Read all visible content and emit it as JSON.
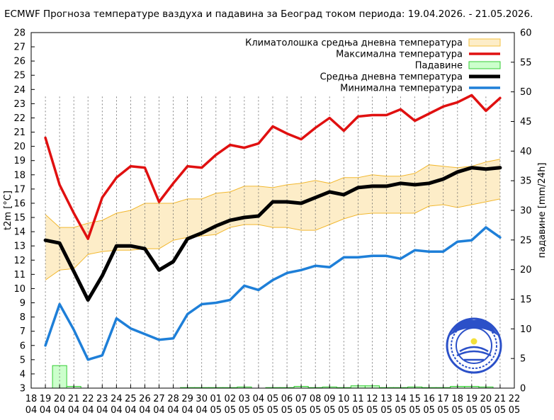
{
  "chart_data": {
    "type": "line",
    "title": "ECMWF Прогноза температуре ваздуха и падавина за Београд током периода: 19.04.2026. - 21.05.2026.",
    "ylabel_left": "t2m [°C]",
    "ylabel_right": "падавине [mm/24h]",
    "ylim_left": [
      3,
      28
    ],
    "ylim_right": [
      0,
      60
    ],
    "y_ticks_left": [
      "3",
      "4",
      "5",
      "6",
      "7",
      "8",
      "9",
      "10",
      "11",
      "12",
      "13",
      "14",
      "15",
      "16",
      "17",
      "18",
      "19",
      "20",
      "21",
      "22",
      "23",
      "24",
      "25",
      "26",
      "27",
      "28"
    ],
    "y_ticks_right": [
      "0",
      "5",
      "10",
      "15",
      "20",
      "25",
      "30",
      "35",
      "40",
      "45",
      "50",
      "55",
      "60"
    ],
    "x_ticks": [
      {
        "day": "18",
        "month": "04"
      },
      {
        "day": "19",
        "month": "04"
      },
      {
        "day": "20",
        "month": "04"
      },
      {
        "day": "21",
        "month": "04"
      },
      {
        "day": "22",
        "month": "04"
      },
      {
        "day": "23",
        "month": "04"
      },
      {
        "day": "24",
        "month": "04"
      },
      {
        "day": "25",
        "month": "04"
      },
      {
        "day": "26",
        "month": "04"
      },
      {
        "day": "27",
        "month": "04"
      },
      {
        "day": "28",
        "month": "04"
      },
      {
        "day": "29",
        "month": "04"
      },
      {
        "day": "30",
        "month": "04"
      },
      {
        "day": "01",
        "month": "05"
      },
      {
        "day": "02",
        "month": "05"
      },
      {
        "day": "03",
        "month": "05"
      },
      {
        "day": "04",
        "month": "05"
      },
      {
        "day": "05",
        "month": "05"
      },
      {
        "day": "06",
        "month": "05"
      },
      {
        "day": "07",
        "month": "05"
      },
      {
        "day": "08",
        "month": "05"
      },
      {
        "day": "09",
        "month": "05"
      },
      {
        "day": "10",
        "month": "05"
      },
      {
        "day": "11",
        "month": "05"
      },
      {
        "day": "12",
        "month": "05"
      },
      {
        "day": "13",
        "month": "05"
      },
      {
        "day": "14",
        "month": "05"
      },
      {
        "day": "15",
        "month": "05"
      },
      {
        "day": "16",
        "month": "05"
      },
      {
        "day": "17",
        "month": "05"
      },
      {
        "day": "18",
        "month": "05"
      },
      {
        "day": "19",
        "month": "05"
      },
      {
        "day": "20",
        "month": "05"
      },
      {
        "day": "21",
        "month": "05"
      },
      {
        "day": "22",
        "month": "05"
      }
    ],
    "x_min_day_index": 0,
    "x_max_day_index": 34,
    "data_start_index": 1,
    "legend": [
      {
        "label": "Климатолошка средња дневна температура",
        "color": "#f5c242",
        "kind": "band"
      },
      {
        "label": "Максимална температура",
        "color": "#e01010",
        "kind": "line"
      },
      {
        "label": "Падавине",
        "color": "#33cc33",
        "kind": "bar"
      },
      {
        "label": "Средња дневна температура",
        "color": "#000000",
        "kind": "line"
      },
      {
        "label": "Минимална температура",
        "color": "#1e7fd8",
        "kind": "line"
      }
    ],
    "series": [
      {
        "name": "Максимална температура",
        "color": "#e01010",
        "values": [
          20.6,
          17.3,
          15.3,
          13.5,
          16.4,
          17.8,
          18.6,
          18.5,
          16.1,
          17.4,
          18.6,
          18.5,
          19.4,
          20.1,
          19.9,
          20.2,
          21.4,
          20.9,
          20.5,
          21.3,
          22.0,
          21.1,
          22.1,
          22.2,
          22.2,
          22.6,
          21.8,
          22.3,
          22.8,
          23.1,
          23.6,
          22.5,
          23.4
        ]
      },
      {
        "name": "Средња дневна температура",
        "color": "#000000",
        "values": [
          13.4,
          13.2,
          11.2,
          9.2,
          10.9,
          13.0,
          13.0,
          12.8,
          11.3,
          11.9,
          13.5,
          13.9,
          14.4,
          14.8,
          15.0,
          15.1,
          16.1,
          16.1,
          16.0,
          16.4,
          16.8,
          16.6,
          17.1,
          17.2,
          17.2,
          17.4,
          17.3,
          17.4,
          17.7,
          18.2,
          18.5,
          18.4,
          18.5
        ]
      },
      {
        "name": "Минимална температура",
        "color": "#1e7fd8",
        "values": [
          6.0,
          8.9,
          7.1,
          5.0,
          5.3,
          7.9,
          7.2,
          6.8,
          6.4,
          6.5,
          8.2,
          8.9,
          9.0,
          9.2,
          10.2,
          9.9,
          10.6,
          11.1,
          11.3,
          11.6,
          11.5,
          12.2,
          12.2,
          12.3,
          12.3,
          12.1,
          12.7,
          12.6,
          12.6,
          13.3,
          13.4,
          14.3,
          13.6
        ]
      }
    ],
    "climatology_band": {
      "name": "Климатолошка средња дневна температура",
      "upper": [
        15.2,
        14.3,
        14.3,
        14.6,
        14.8,
        15.3,
        15.5,
        16.0,
        16.0,
        16.0,
        16.3,
        16.3,
        16.7,
        16.8,
        17.2,
        17.2,
        17.1,
        17.3,
        17.4,
        17.6,
        17.4,
        17.8,
        17.8,
        18.0,
        17.9,
        17.9,
        18.1,
        18.7,
        18.6,
        18.5,
        18.6,
        18.9,
        19.1
      ],
      "lower": [
        10.6,
        11.3,
        11.4,
        12.4,
        12.6,
        12.7,
        12.7,
        12.8,
        12.8,
        13.4,
        13.6,
        13.7,
        13.8,
        14.3,
        14.5,
        14.5,
        14.3,
        14.3,
        14.1,
        14.1,
        14.5,
        14.9,
        15.2,
        15.3,
        15.3,
        15.3,
        15.3,
        15.8,
        15.9,
        15.7,
        15.9,
        16.1,
        16.3
      ]
    },
    "precipitation": {
      "name": "Падавине",
      "unit": "mm/24h",
      "values": [
        0,
        3.8,
        0.3,
        0,
        0,
        0,
        0,
        0,
        0,
        0,
        0.1,
        0.1,
        0.1,
        0.1,
        0.2,
        0,
        0.1,
        0.1,
        0.3,
        0.1,
        0.2,
        0.1,
        0.4,
        0.4,
        0.1,
        0.1,
        0.2,
        0.1,
        0.1,
        0.3,
        0.3,
        0.2,
        0
      ]
    }
  }
}
